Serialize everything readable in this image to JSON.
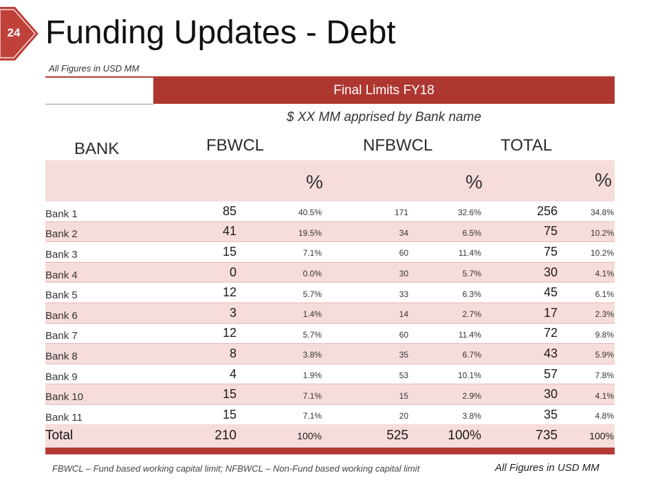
{
  "slide": {
    "number": "24",
    "title": "Funding Updates - Debt",
    "units_note": "All Figures in USD MM",
    "header_band": "Final Limits FY18",
    "subheading": "$ XX MM apprised by Bank name",
    "accent_color": "#ae3731",
    "row_tint_color": "#f6dcdb"
  },
  "table": {
    "columns": {
      "bank": "BANK",
      "fbwcl": "FBWCL",
      "nfbwcl": "NFBWCL",
      "total": "TOTAL",
      "pct": "%"
    },
    "rows": [
      {
        "bank": "Bank 1",
        "fbwcl": "85",
        "fbwcl_pct": "40.5%",
        "nfbwcl": "171",
        "nfbwcl_pct": "32.6%",
        "total": "256",
        "total_pct": "34.8%"
      },
      {
        "bank": "Bank 2",
        "fbwcl": "41",
        "fbwcl_pct": "19.5%",
        "nfbwcl": "34",
        "nfbwcl_pct": "6.5%",
        "total": "75",
        "total_pct": "10.2%"
      },
      {
        "bank": "Bank 3",
        "fbwcl": "15",
        "fbwcl_pct": "7.1%",
        "nfbwcl": "60",
        "nfbwcl_pct": "11.4%",
        "total": "75",
        "total_pct": "10.2%"
      },
      {
        "bank": "Bank 4",
        "fbwcl": "0",
        "fbwcl_pct": "0.0%",
        "nfbwcl": "30",
        "nfbwcl_pct": "5.7%",
        "total": "30",
        "total_pct": "4.1%"
      },
      {
        "bank": "Bank 5",
        "fbwcl": "12",
        "fbwcl_pct": "5.7%",
        "nfbwcl": "33",
        "nfbwcl_pct": "6.3%",
        "total": "45",
        "total_pct": "6.1%"
      },
      {
        "bank": "Bank 6",
        "fbwcl": "3",
        "fbwcl_pct": "1.4%",
        "nfbwcl": "14",
        "nfbwcl_pct": "2.7%",
        "total": "17",
        "total_pct": "2.3%"
      },
      {
        "bank": "Bank 7",
        "fbwcl": "12",
        "fbwcl_pct": "5.7%",
        "nfbwcl": "60",
        "nfbwcl_pct": "11.4%",
        "total": "72",
        "total_pct": "9.8%"
      },
      {
        "bank": "Bank 8",
        "fbwcl": "8",
        "fbwcl_pct": "3.8%",
        "nfbwcl": "35",
        "nfbwcl_pct": "6.7%",
        "total": "43",
        "total_pct": "5.9%"
      },
      {
        "bank": "Bank 9",
        "fbwcl": "4",
        "fbwcl_pct": "1.9%",
        "nfbwcl": "53",
        "nfbwcl_pct": "10.1%",
        "total": "57",
        "total_pct": "7.8%"
      },
      {
        "bank": "Bank 10",
        "fbwcl": "15",
        "fbwcl_pct": "7.1%",
        "nfbwcl": "15",
        "nfbwcl_pct": "2.9%",
        "total": "30",
        "total_pct": "4.1%"
      },
      {
        "bank": "Bank 11",
        "fbwcl": "15",
        "fbwcl_pct": "7.1%",
        "nfbwcl": "20",
        "nfbwcl_pct": "3.8%",
        "total": "35",
        "total_pct": "4.8%"
      }
    ],
    "total": {
      "label": "Total",
      "fbwcl": "210",
      "fbwcl_pct": "100%",
      "nfbwcl": "525",
      "nfbwcl_pct": "100%",
      "total": "735",
      "total_pct": "100%"
    }
  },
  "footer": {
    "note": "FBWCL – Fund based working capital limit; NFBWCL – Non-Fund based working capital limit",
    "units": "All Figures in USD MM"
  }
}
